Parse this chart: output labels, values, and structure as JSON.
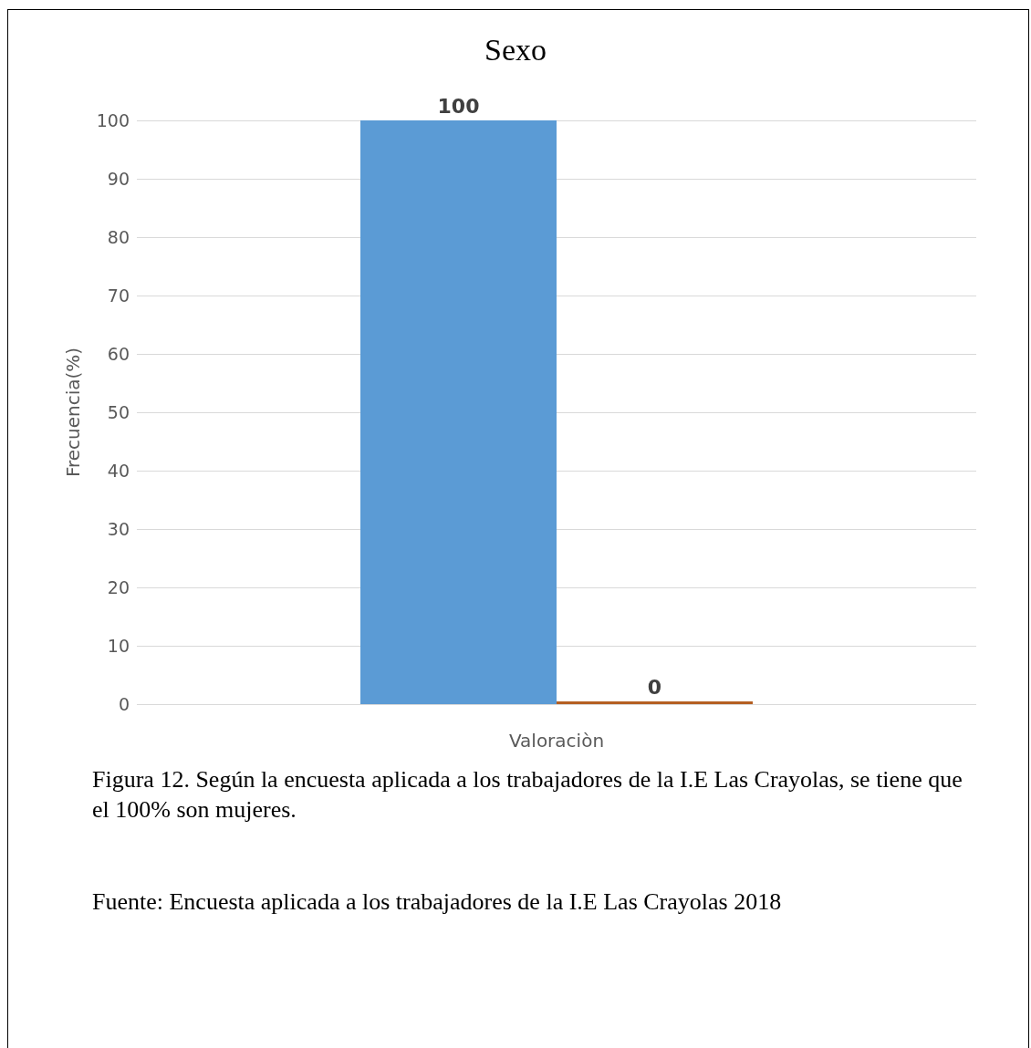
{
  "chart_data": {
    "type": "bar",
    "title": "Sexo",
    "xlabel": "Valoraciòn",
    "ylabel": "Frecuencia(%)",
    "categories": [
      null
    ],
    "series": [
      {
        "color": "#5b9bd5",
        "values": [
          100
        ]
      },
      {
        "color": "#b45f22",
        "values": [
          0
        ]
      }
    ],
    "ylim": [
      0,
      100
    ],
    "yticks": [
      0,
      10,
      20,
      30,
      40,
      50,
      60,
      70,
      80,
      90,
      100
    ],
    "grid": "y",
    "data_labels": true,
    "annotations": [
      "Figura 12. Según la encuesta aplicada a los trabajadores de la I.E Las Crayolas, se tiene que el 100% son mujeres.",
      "Fuente: Encuesta aplicada a los trabajadores de la I.E Las Crayolas 2018"
    ]
  }
}
